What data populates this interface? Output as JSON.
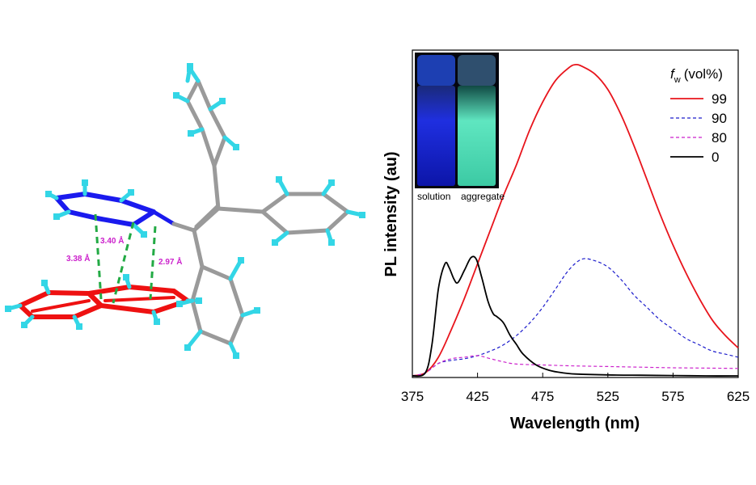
{
  "colors": {
    "series_99": "#e8141c",
    "series_90": "#1c1ccc",
    "series_80": "#cc22cc",
    "series_0": "#000000",
    "bond_green": "#22aa44",
    "dist_label": "#cc22cc",
    "atom_red": "#ee1111",
    "atom_blue": "#1a1aee",
    "atom_grey": "#9a9a9a",
    "atom_cyan": "#33d6e6"
  },
  "molecule": {
    "distances": [
      "3.38 Å",
      "3.40 Å",
      "2.97 Å"
    ]
  },
  "inset": {
    "labels": [
      "solution",
      "aggregate"
    ]
  },
  "chart_data": {
    "type": "line",
    "xlabel": "Wavelength (nm)",
    "ylabel": "PL intensity (au)",
    "xlim": [
      375,
      625
    ],
    "ylim": [
      0,
      1.0
    ],
    "xticks": [
      375,
      425,
      475,
      525,
      575,
      625
    ],
    "legend_title_main": "f",
    "legend_title_sub": "w",
    "legend_title_unit": "(vol%)",
    "legend_position": "top-right",
    "grid": false,
    "series": [
      {
        "name": "99",
        "style": "solid",
        "color_key": "series_99",
        "x": [
          375,
          385,
          395,
          405,
          415,
          425,
          435,
          445,
          455,
          465,
          475,
          485,
          495,
          500,
          505,
          515,
          525,
          535,
          545,
          555,
          565,
          575,
          585,
          595,
          605,
          615,
          625
        ],
        "y": [
          0.0,
          0.01,
          0.06,
          0.15,
          0.25,
          0.36,
          0.47,
          0.58,
          0.68,
          0.79,
          0.88,
          0.95,
          0.99,
          1.0,
          0.995,
          0.97,
          0.92,
          0.84,
          0.74,
          0.63,
          0.52,
          0.42,
          0.33,
          0.25,
          0.18,
          0.13,
          0.09
        ]
      },
      {
        "name": "90",
        "style": "dashed",
        "color_key": "series_90",
        "x": [
          375,
          385,
          395,
          405,
          415,
          425,
          435,
          445,
          455,
          465,
          475,
          485,
          495,
          505,
          515,
          525,
          535,
          545,
          555,
          565,
          575,
          585,
          595,
          605,
          615,
          625
        ],
        "y": [
          0.0,
          0.01,
          0.04,
          0.05,
          0.055,
          0.065,
          0.08,
          0.1,
          0.13,
          0.17,
          0.22,
          0.28,
          0.34,
          0.375,
          0.37,
          0.35,
          0.31,
          0.26,
          0.22,
          0.18,
          0.15,
          0.12,
          0.1,
          0.08,
          0.07,
          0.06
        ]
      },
      {
        "name": "80",
        "style": "dashed",
        "color_key": "series_80",
        "x": [
          375,
          385,
          395,
          405,
          415,
          425,
          435,
          445,
          455,
          475,
          500,
          525,
          550,
          575,
          600,
          625
        ],
        "y": [
          0.0,
          0.01,
          0.04,
          0.055,
          0.06,
          0.065,
          0.055,
          0.045,
          0.038,
          0.035,
          0.032,
          0.03,
          0.028,
          0.026,
          0.025,
          0.024
        ]
      },
      {
        "name": "0",
        "style": "solid",
        "color_key": "series_0",
        "x": [
          375,
          385,
          390,
          395,
          400,
          403,
          407,
          410,
          415,
          420,
          424,
          428,
          433,
          437,
          440,
          445,
          450,
          455,
          460,
          470,
          480,
          490,
          500,
          525,
          550,
          575,
          600,
          625
        ],
        "y": [
          0.0,
          0.01,
          0.1,
          0.28,
          0.36,
          0.35,
          0.31,
          0.3,
          0.34,
          0.38,
          0.375,
          0.32,
          0.24,
          0.2,
          0.19,
          0.17,
          0.13,
          0.1,
          0.07,
          0.035,
          0.018,
          0.01,
          0.006,
          0.003,
          0.002,
          0.001,
          0.0,
          0.0
        ]
      }
    ]
  }
}
